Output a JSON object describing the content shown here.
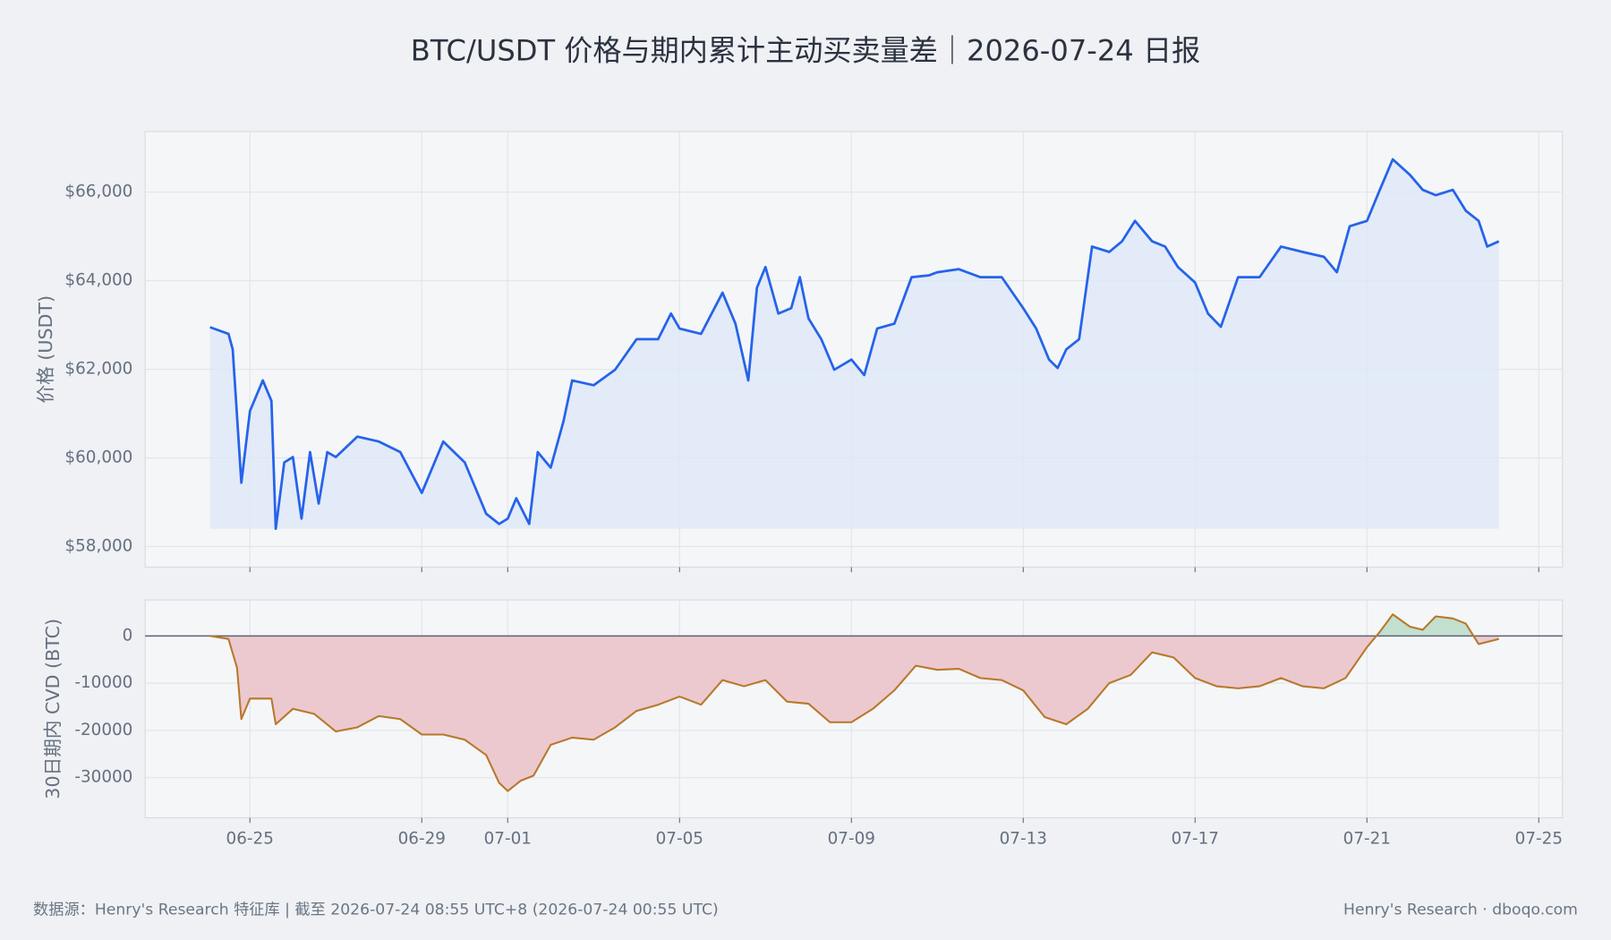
{
  "title": "BTC/USDT 价格与期内累计主动买卖量差｜2026-07-24 日报",
  "footer_left": "数据源：Henry's Research 特征库 | 截至 2026-07-24 08:55 UTC+8 (2026-07-24 00:55 UTC)",
  "footer_right": "Henry's Research · dboqo.com",
  "chart_data": [
    {
      "type": "line",
      "y_label": "价格 (USDT)",
      "color": "#2563eb",
      "fill": "#dfe7f8",
      "grid": true,
      "xlim": [
        -1.44,
        31.55
      ],
      "ylim": [
        57536,
        67368
      ],
      "yticks": [
        {
          "value": 58000,
          "label": "$58,000"
        },
        {
          "value": 60000,
          "label": "$60,000"
        },
        {
          "value": 62000,
          "label": "$62,000"
        },
        {
          "value": 64000,
          "label": "$64,000"
        },
        {
          "value": 66000,
          "label": "$66,000"
        }
      ],
      "x": [
        0.07,
        0.5,
        0.6,
        0.8,
        1.0,
        1.3,
        1.5,
        1.6,
        1.8,
        2.0,
        2.2,
        2.4,
        2.6,
        2.8,
        3.0,
        3.5,
        4.0,
        4.5,
        5.0,
        5.5,
        6.0,
        6.5,
        6.8,
        7.0,
        7.2,
        7.5,
        7.7,
        8.0,
        8.3,
        8.5,
        9.0,
        9.5,
        10.0,
        10.5,
        10.8,
        11.0,
        11.5,
        12.0,
        12.3,
        12.6,
        12.8,
        13.0,
        13.3,
        13.6,
        13.8,
        14.0,
        14.3,
        14.6,
        15.0,
        15.3,
        15.6,
        16.0,
        16.4,
        16.8,
        17.0,
        17.5,
        18.0,
        18.5,
        19.0,
        19.3,
        19.6,
        19.8,
        20.0,
        20.3,
        20.6,
        21.0,
        21.3,
        21.6,
        22.0,
        22.3,
        22.6,
        23.0,
        23.3,
        23.6,
        24.0,
        24.5,
        25.0,
        25.5,
        26.0,
        26.3,
        26.6,
        27.0,
        27.3,
        27.6,
        28.0,
        28.3,
        28.6,
        29.0,
        29.3,
        29.6,
        29.8,
        30.07
      ],
      "values": [
        62950,
        62800,
        62450,
        59440,
        61060,
        61750,
        61290,
        58400,
        59900,
        60020,
        58630,
        60130,
        58970,
        60130,
        60020,
        60480,
        60370,
        60130,
        59210,
        60370,
        59900,
        58740,
        58510,
        58630,
        59090,
        58510,
        60130,
        59780,
        60830,
        61750,
        61640,
        61990,
        62680,
        62680,
        63260,
        62920,
        62800,
        63730,
        63030,
        61750,
        63840,
        64310,
        63260,
        63380,
        64080,
        63150,
        62680,
        61990,
        62220,
        61870,
        62920,
        63030,
        64080,
        64120,
        64190,
        64260,
        64080,
        64080,
        63380,
        62920,
        62220,
        62030,
        62450,
        62680,
        64770,
        64650,
        64890,
        65350,
        64890,
        64770,
        64310,
        63960,
        63260,
        62960,
        64080,
        64080,
        64770,
        64650,
        64540,
        64190,
        65230,
        65350,
        66050,
        66740,
        66390,
        66050,
        65930,
        66050,
        65580,
        65350,
        64770,
        64890
      ]
    },
    {
      "type": "line",
      "y_label": "30日期内 CVD (BTC)",
      "color": "#b8782a",
      "pos_fill": "#c3dfd0",
      "neg_fill": "#ecc9cf",
      "zero_color": "#5a6270",
      "grid": true,
      "xlim": [
        -1.44,
        31.55
      ],
      "ylim": [
        -38478,
        7609
      ],
      "xticks": [
        {
          "value": 1,
          "label": "06-25"
        },
        {
          "value": 5,
          "label": "06-29"
        },
        {
          "value": 7,
          "label": "07-01"
        },
        {
          "value": 11,
          "label": "07-05"
        },
        {
          "value": 15,
          "label": "07-09"
        },
        {
          "value": 19,
          "label": "07-13"
        },
        {
          "value": 23,
          "label": "07-17"
        },
        {
          "value": 27,
          "label": "07-21"
        },
        {
          "value": 31,
          "label": "07-25"
        }
      ],
      "yticks": [
        -30000,
        -20000,
        -10000,
        0
      ],
      "x": [
        0.07,
        0.5,
        0.7,
        0.8,
        1.0,
        1.5,
        1.6,
        2.0,
        2.5,
        3.0,
        3.5,
        4.0,
        4.5,
        5.0,
        5.5,
        6.0,
        6.5,
        6.8,
        7.0,
        7.3,
        7.6,
        8.0,
        8.5,
        9.0,
        9.5,
        10.0,
        10.5,
        11.0,
        11.5,
        12.0,
        12.5,
        13.0,
        13.5,
        14.0,
        14.5,
        15.0,
        15.5,
        16.0,
        16.5,
        17.0,
        17.5,
        18.0,
        18.5,
        19.0,
        19.5,
        20.0,
        20.5,
        21.0,
        21.5,
        22.0,
        22.5,
        23.0,
        23.5,
        24.0,
        24.5,
        25.0,
        25.5,
        26.0,
        26.5,
        27.0,
        27.3,
        27.6,
        28.0,
        28.3,
        28.6,
        29.0,
        29.3,
        29.6,
        30.07
      ],
      "values": [
        0,
        -650,
        -6740,
        -17600,
        -13260,
        -13260,
        -18700,
        -15430,
        -16520,
        -20220,
        -19350,
        -16960,
        -17610,
        -20870,
        -20870,
        -21960,
        -25220,
        -31090,
        -32830,
        -30650,
        -29570,
        -23040,
        -21520,
        -21960,
        -19350,
        -15870,
        -14570,
        -12830,
        -14570,
        -9350,
        -10650,
        -9350,
        -13910,
        -14350,
        -18260,
        -18260,
        -15430,
        -11520,
        -6300,
        -7170,
        -6960,
        -8910,
        -9350,
        -11520,
        -17170,
        -18700,
        -15430,
        -10000,
        -8260,
        -3480,
        -4570,
        -8910,
        -10650,
        -11090,
        -10650,
        -8910,
        -10650,
        -11090,
        -8910,
        -2390,
        870,
        4570,
        1960,
        1300,
        4130,
        3700,
        2610,
        -1740,
        -650
      ]
    }
  ]
}
